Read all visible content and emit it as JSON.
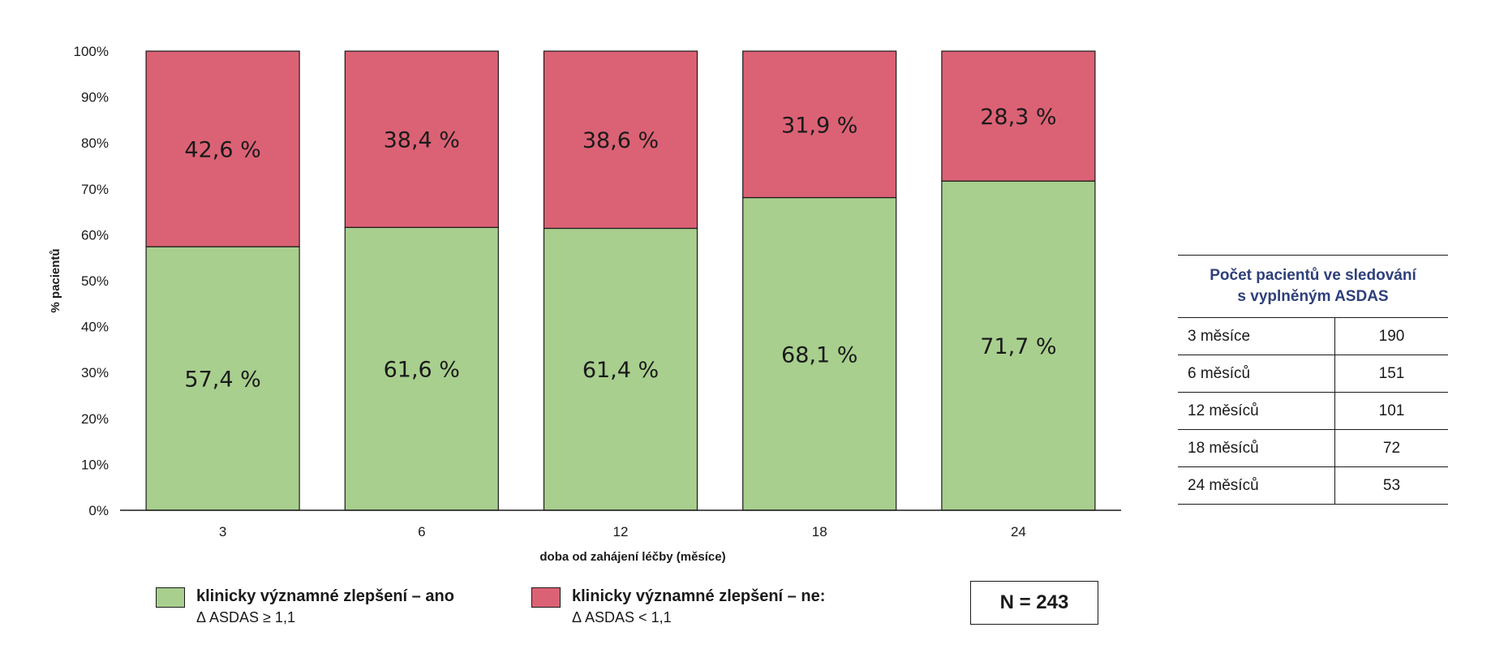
{
  "chart_data": {
    "type": "bar",
    "stacked": true,
    "categories": [
      "3",
      "6",
      "12",
      "18",
      "24"
    ],
    "series": [
      {
        "name": "klinicky významné zlepšení – ano",
        "color": "#a8cf8e",
        "values": [
          57.4,
          61.6,
          61.4,
          68.1,
          71.7
        ],
        "labels": [
          "57,4 %",
          "61,6 %",
          "61,4 %",
          "68,1 %",
          "71,7 %"
        ]
      },
      {
        "name": "klinicky významné zlepšení – ne:",
        "color": "#db6275",
        "values": [
          42.6,
          38.4,
          38.6,
          31.9,
          28.3
        ],
        "labels": [
          "42,6 %",
          "38,4 %",
          "38,6 %",
          "31,9 %",
          "28,3 %"
        ]
      }
    ],
    "xlabel": "doba od zahájení léčby (měsíce)",
    "ylabel": "% pacientů",
    "ylim": [
      0,
      100
    ],
    "yticks": [
      "0%",
      "10%",
      "20%",
      "30%",
      "40%",
      "50%",
      "60%",
      "70%",
      "80%",
      "90%",
      "100%"
    ],
    "grid": false,
    "legend_position": "bottom"
  },
  "legend": {
    "yes": {
      "line1": "klinicky významné zlepšení – ano",
      "line2": "Δ ASDAS ≥ 1,1"
    },
    "no": {
      "line1": "klinicky významné zlepšení – ne:",
      "line2": "Δ ASDAS < 1,1"
    }
  },
  "n_label": "N = 243",
  "count_table": {
    "header_line1": "Počet pacientů ve sledování",
    "header_line2": "s vyplněným ASDAS",
    "rows": [
      {
        "label": "3 měsíce",
        "value": "190"
      },
      {
        "label": "6 měsíců",
        "value": "151"
      },
      {
        "label": "12 měsíců",
        "value": "101"
      },
      {
        "label": "18 měsíců",
        "value": "72"
      },
      {
        "label": "24 měsíců",
        "value": "53"
      }
    ]
  }
}
